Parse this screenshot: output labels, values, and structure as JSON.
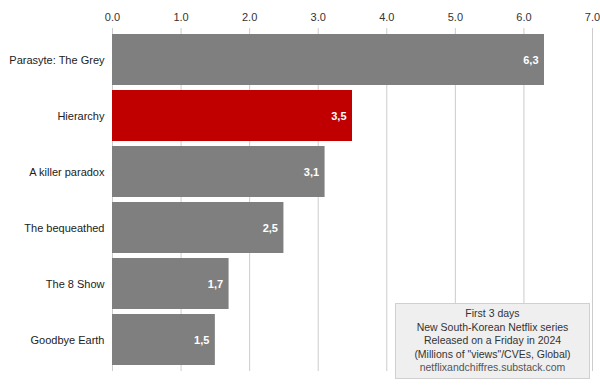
{
  "chart_data": {
    "type": "bar",
    "orientation": "horizontal",
    "categories": [
      "Parasyte: The Grey",
      "Hierarchy",
      "A killer paradox",
      "The bequeathed",
      "The 8 Show",
      "Goodbye Earth"
    ],
    "values": [
      6.3,
      3.5,
      3.1,
      2.5,
      1.7,
      1.5
    ],
    "value_labels": [
      "6,3",
      "3,5",
      "3,1",
      "2,5",
      "1,7",
      "1,5"
    ],
    "colors": [
      "#7f7f7f",
      "#c00000",
      "#7f7f7f",
      "#7f7f7f",
      "#7f7f7f",
      "#7f7f7f"
    ],
    "xlim": [
      0,
      7
    ],
    "xticks": [
      0,
      1,
      2,
      3,
      4,
      5,
      6,
      7
    ],
    "grid": true,
    "data_labels": true,
    "annotations": [
      "First 3 days",
      "New South-Korean Netflix series",
      "Released on a Friday in 2024",
      "(Millions of \"views\"/CVEs, Global)",
      "netflixandchiffres.substack.com"
    ]
  }
}
